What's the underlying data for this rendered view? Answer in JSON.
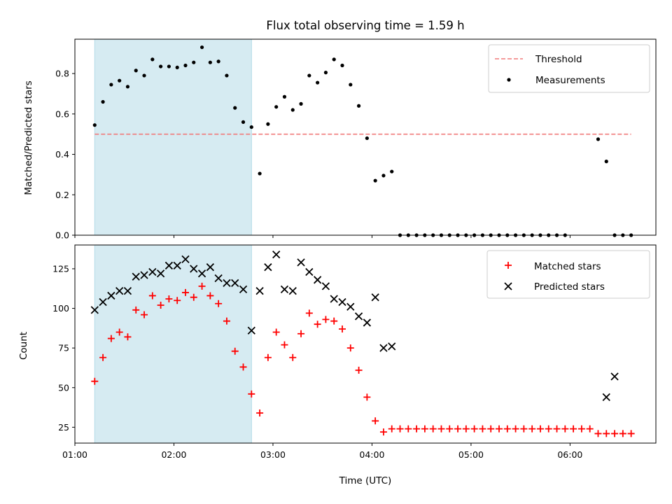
{
  "chart_data": [
    {
      "type": "scatter",
      "title": "Flux total observing time = 1.59 h",
      "ylabel": "Matched/Predicted stars",
      "xlabel": "",
      "xlim": [
        "01:00",
        "06:52"
      ],
      "ylim": [
        0,
        0.97
      ],
      "yticks": [
        0.0,
        0.2,
        0.4,
        0.6,
        0.8
      ],
      "ytick_labels": [
        "0.0",
        "0.2",
        "0.4",
        "0.6",
        "0.8"
      ],
      "legend_position": "upper right",
      "highlight_span": [
        "01:12",
        "02:47"
      ],
      "colors": {
        "threshold": "#f07a7a",
        "measurements": "#000000",
        "span": "#add8e6"
      },
      "threshold": {
        "name": "Threshold",
        "value": 0.5,
        "x_start": "01:12",
        "x_end": "06:37"
      },
      "series": [
        {
          "name": "Measurements",
          "x": [
            "01:12",
            "01:17",
            "01:22",
            "01:27",
            "01:32",
            "01:37",
            "01:42",
            "01:47",
            "01:52",
            "01:57",
            "02:02",
            "02:07",
            "02:12",
            "02:17",
            "02:22",
            "02:27",
            "02:32",
            "02:37",
            "02:42",
            "02:47",
            "02:52",
            "02:57",
            "03:02",
            "03:07",
            "03:12",
            "03:17",
            "03:22",
            "03:27",
            "03:32",
            "03:37",
            "03:42",
            "03:47",
            "03:52",
            "03:57",
            "04:02",
            "04:07",
            "04:12",
            "04:17",
            "04:22",
            "04:27",
            "04:32",
            "04:37",
            "04:42",
            "04:47",
            "04:52",
            "04:57",
            "05:02",
            "05:07",
            "05:12",
            "05:17",
            "05:22",
            "05:27",
            "05:32",
            "05:37",
            "05:42",
            "05:47",
            "05:52",
            "05:57",
            "06:02",
            "06:07",
            "06:12",
            "06:17",
            "06:22",
            "06:27",
            "06:32",
            "06:37"
          ],
          "y": [
            0.545,
            0.66,
            0.745,
            0.765,
            0.735,
            0.815,
            0.79,
            0.87,
            0.835,
            0.835,
            0.83,
            0.84,
            0.855,
            0.93,
            0.855,
            0.86,
            0.79,
            0.63,
            0.56,
            0.535,
            0.305,
            0.55,
            0.635,
            0.685,
            0.62,
            0.65,
            0.79,
            0.755,
            0.805,
            0.87,
            0.84,
            0.745,
            0.64,
            0.48,
            0.27,
            0.295,
            0.315,
            0,
            0,
            0,
            0,
            0,
            0,
            0,
            0,
            0,
            0,
            0,
            0,
            0,
            0,
            0,
            0,
            0,
            0,
            0,
            0,
            0,
            0,
            0,
            0,
            0.475,
            0.365,
            0,
            0,
            0
          ],
          "missing_indices": [
            58,
            59,
            60
          ]
        }
      ]
    },
    {
      "type": "scatter",
      "title": "",
      "xlabel": "Time (UTC)",
      "ylabel": "Count",
      "xlim": [
        "01:00",
        "06:52"
      ],
      "ylim": [
        15,
        140
      ],
      "xtick_labels": [
        "01:00",
        "02:00",
        "03:00",
        "04:00",
        "05:00",
        "06:00"
      ],
      "ytick_labels": [
        "25",
        "50",
        "75",
        "100",
        "125"
      ],
      "legend_position": "upper right",
      "highlight_span": [
        "01:12",
        "02:47"
      ],
      "colors": {
        "matched": "#ff0000",
        "predicted": "#000000",
        "span": "#add8e6"
      },
      "series": [
        {
          "name": "Matched stars",
          "marker": "+",
          "x": [
            "01:12",
            "01:17",
            "01:22",
            "01:27",
            "01:32",
            "01:37",
            "01:42",
            "01:47",
            "01:52",
            "01:57",
            "02:02",
            "02:07",
            "02:12",
            "02:17",
            "02:22",
            "02:27",
            "02:32",
            "02:37",
            "02:42",
            "02:47",
            "02:52",
            "02:57",
            "03:02",
            "03:07",
            "03:12",
            "03:17",
            "03:22",
            "03:27",
            "03:32",
            "03:37",
            "03:42",
            "03:47",
            "03:52",
            "03:57",
            "04:02",
            "04:07",
            "04:12",
            "04:17",
            "04:22",
            "04:27",
            "04:32",
            "04:37",
            "04:42",
            "04:47",
            "04:52",
            "04:57",
            "05:02",
            "05:07",
            "05:12",
            "05:17",
            "05:22",
            "05:27",
            "05:32",
            "05:37",
            "05:42",
            "05:47",
            "05:52",
            "05:57",
            "06:02",
            "06:07",
            "06:12",
            "06:17",
            "06:22",
            "06:27",
            "06:32",
            "06:37"
          ],
          "y": [
            54,
            69,
            81,
            85,
            82,
            99,
            96,
            108,
            102,
            106,
            105,
            110,
            107,
            114,
            108,
            103,
            92,
            73,
            63,
            46,
            34,
            69,
            85,
            77,
            69,
            84,
            97,
            90,
            93,
            92,
            87,
            75,
            61,
            44,
            29,
            22,
            24,
            24,
            24,
            24,
            24,
            24,
            24,
            24,
            24,
            24,
            24,
            24,
            24,
            24,
            24,
            24,
            24,
            24,
            24,
            24,
            24,
            24,
            24,
            24,
            24,
            21,
            21,
            21,
            21,
            21
          ],
          "missing_indices": []
        },
        {
          "name": "Predicted stars",
          "marker": "x",
          "x": [
            "01:12",
            "01:17",
            "01:22",
            "01:27",
            "01:32",
            "01:37",
            "01:42",
            "01:47",
            "01:52",
            "01:57",
            "02:02",
            "02:07",
            "02:12",
            "02:17",
            "02:22",
            "02:27",
            "02:32",
            "02:37",
            "02:42",
            "02:47",
            "02:52",
            "02:57",
            "03:02",
            "03:07",
            "03:12",
            "03:17",
            "03:22",
            "03:27",
            "03:32",
            "03:37",
            "03:42",
            "03:47",
            "03:52",
            "03:57",
            "04:02",
            "04:07",
            "04:12",
            "06:22",
            "06:27"
          ],
          "y": [
            99,
            104,
            108,
            111,
            111,
            120,
            121,
            123,
            122,
            127,
            127,
            131,
            125,
            122,
            126,
            119,
            116,
            116,
            112,
            86,
            111,
            126,
            134,
            112,
            111,
            129,
            123,
            118,
            114,
            106,
            104,
            101,
            95,
            91,
            107,
            75,
            76,
            44,
            57
          ],
          "missing_indices": []
        }
      ]
    }
  ]
}
